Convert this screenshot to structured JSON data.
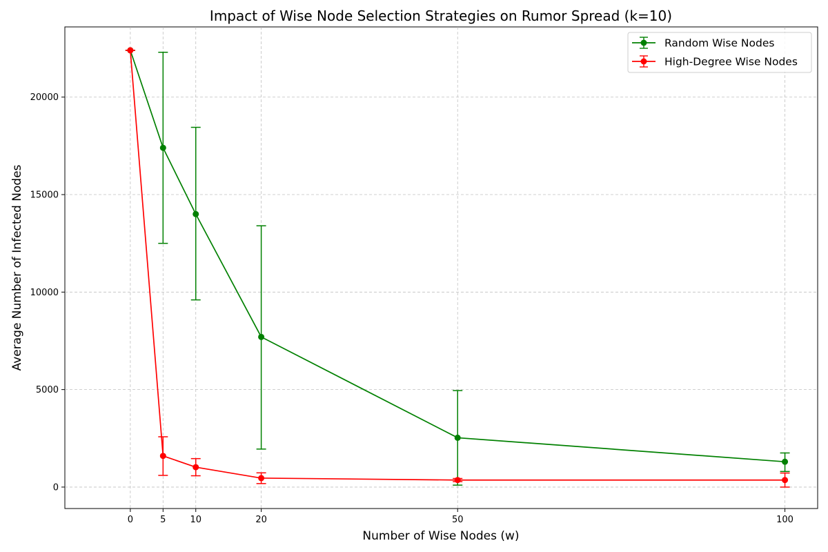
{
  "chart_data": {
    "type": "line",
    "title": "Impact of Wise Node Selection Strategies on Rumor Spread (k=10)",
    "xlabel": "Number of Wise Nodes (w)",
    "ylabel": "Average Number of Infected Nodes",
    "xlim": [
      -10,
      105
    ],
    "ylim": [
      -1100,
      23600
    ],
    "xticks": [
      0,
      5,
      10,
      20,
      50,
      100
    ],
    "yticks": [
      0,
      5000,
      10000,
      15000,
      20000
    ],
    "grid": true,
    "legend_position": "top-right",
    "x": [
      0,
      5,
      10,
      20,
      50,
      100
    ],
    "series": [
      {
        "name": "Random Wise Nodes",
        "color": "#008000",
        "values": [
          22400,
          17400,
          14000,
          7700,
          2530,
          1300
        ],
        "err_low": [
          22400,
          12500,
          9600,
          1950,
          100,
          800
        ],
        "err_high": [
          22400,
          22300,
          18450,
          13400,
          4950,
          1750
        ]
      },
      {
        "name": "High-Degree Wise Nodes",
        "color": "#ff0000",
        "values": [
          22400,
          1600,
          1020,
          460,
          360,
          360
        ],
        "err_low": [
          22400,
          600,
          580,
          180,
          280,
          0
        ],
        "err_high": [
          22400,
          2580,
          1460,
          730,
          440,
          720
        ]
      }
    ]
  }
}
